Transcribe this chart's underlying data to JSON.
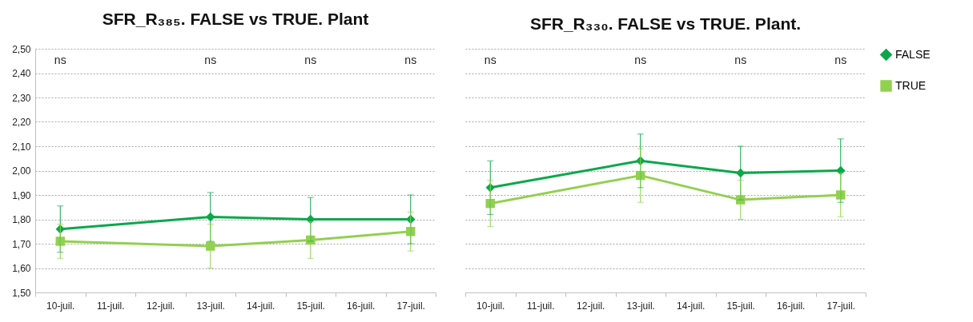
{
  "chart_data": [
    {
      "type": "line",
      "title": "SFR_R₃₈₅. FALSE vs TRUE. Plant",
      "categories": [
        "10-juil.",
        "11-juil.",
        "12-juil.",
        "13-juil.",
        "14-juil.",
        "15-juil.",
        "16-juil.",
        "17-juil."
      ],
      "series": [
        {
          "color": "#0aa84a",
          "marker": "diamond",
          "values": [
            1.76,
            null,
            null,
            1.81,
            null,
            1.8,
            null,
            1.8
          ],
          "errors": [
            0.095,
            null,
            null,
            0.1,
            null,
            0.09,
            null,
            0.1
          ]
        },
        {
          "color": "#92d050",
          "marker": "square",
          "values": [
            1.71,
            null,
            null,
            1.69,
            null,
            1.715,
            null,
            1.75
          ],
          "errors": [
            0.07,
            null,
            null,
            0.09,
            null,
            0.075,
            null,
            0.08
          ]
        }
      ],
      "ylim": [
        1.5,
        2.5
      ],
      "yticks": [
        {
          "value": 1.5,
          "label": "1,50"
        },
        {
          "value": 1.6,
          "label": "1,60"
        },
        {
          "value": 1.7,
          "label": "1,70"
        },
        {
          "value": 1.8,
          "label": "1,80"
        },
        {
          "value": 1.9,
          "label": "1,90"
        },
        {
          "value": 2.0,
          "label": "2,00"
        },
        {
          "value": 2.1,
          "label": "2,10"
        },
        {
          "value": 2.2,
          "label": "2,20"
        },
        {
          "value": 2.3,
          "label": "2,30"
        },
        {
          "value": 2.4,
          "label": "2,40"
        },
        {
          "value": 2.5,
          "label": "2,50"
        }
      ],
      "grid": "y",
      "annotations": [
        "ns",
        "ns",
        "ns",
        "ns"
      ]
    },
    {
      "type": "line",
      "title": "SFR_R₃₃₀. FALSE vs TRUE. Plant.",
      "categories": [
        "10-juil.",
        "11-juil.",
        "12-juil.",
        "13-juil.",
        "14-juil.",
        "15-juil.",
        "16-juil.",
        "17-juil."
      ],
      "series": [
        {
          "name": "FALSE",
          "color": "#0aa84a",
          "marker": "diamond",
          "values": [
            1.93,
            null,
            null,
            2.04,
            null,
            1.99,
            null,
            2.0
          ],
          "errors": [
            0.11,
            null,
            null,
            0.11,
            null,
            0.11,
            null,
            0.13
          ]
        },
        {
          "name": "TRUE",
          "color": "#92d050",
          "marker": "square",
          "values": [
            1.865,
            null,
            null,
            1.98,
            null,
            1.88,
            null,
            1.9
          ],
          "errors": [
            0.095,
            null,
            null,
            0.11,
            null,
            0.08,
            null,
            0.09
          ]
        }
      ],
      "ylim": [
        1.5,
        2.5
      ],
      "yticks": [
        1.5,
        1.6,
        1.7,
        1.8,
        1.9,
        2.0,
        2.1,
        2.2,
        2.3,
        2.4,
        2.5
      ],
      "grid": "y",
      "legend": "right",
      "tick_labels": "x",
      "annotations": [
        "ns",
        "ns",
        "ns",
        "ns"
      ]
    }
  ]
}
